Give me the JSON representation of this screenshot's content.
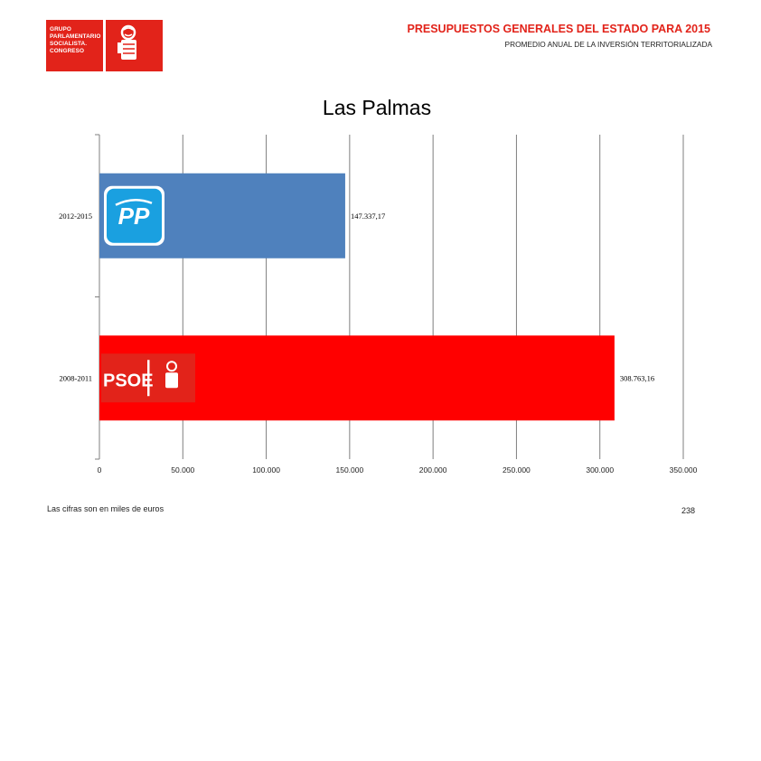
{
  "header": {
    "logo_lines": [
      "GRUPO",
      "PARLAMENTARIO",
      "SOCIALISTA.",
      "CONGRESO"
    ],
    "title": "PRESUPUESTOS GENERALES DEL ESTADO PARA 2015",
    "subtitle": "PROMEDIO ANUAL DE LA INVERSIÓN TERRITORIALIZADA"
  },
  "colors": {
    "brand_red": "#e2231a",
    "pp_blue": "#4f81bd",
    "psoe_red": "#ff0000"
  },
  "chart_data": {
    "type": "bar",
    "orientation": "horizontal",
    "title": "Las Palmas",
    "categories": [
      "2012-2015",
      "2008-2011"
    ],
    "values": [
      147337.17,
      308763.16
    ],
    "value_labels": [
      "147.337,17",
      "308.763,16"
    ],
    "bar_colors": [
      "#4f81bd",
      "#ff0000"
    ],
    "bar_icons": [
      "pp-logo-icon",
      "psoe-logo-icon"
    ],
    "xlim": [
      0,
      350000
    ],
    "x_ticks": [
      0,
      50000,
      100000,
      150000,
      200000,
      250000,
      300000,
      350000
    ],
    "x_tick_labels": [
      "0",
      "50.000",
      "100.000",
      "150.000",
      "200.000",
      "250.000",
      "300.000",
      "350.000"
    ],
    "grid": true
  },
  "footer": {
    "note": "Las cifras son en miles de euros",
    "page": "238"
  }
}
